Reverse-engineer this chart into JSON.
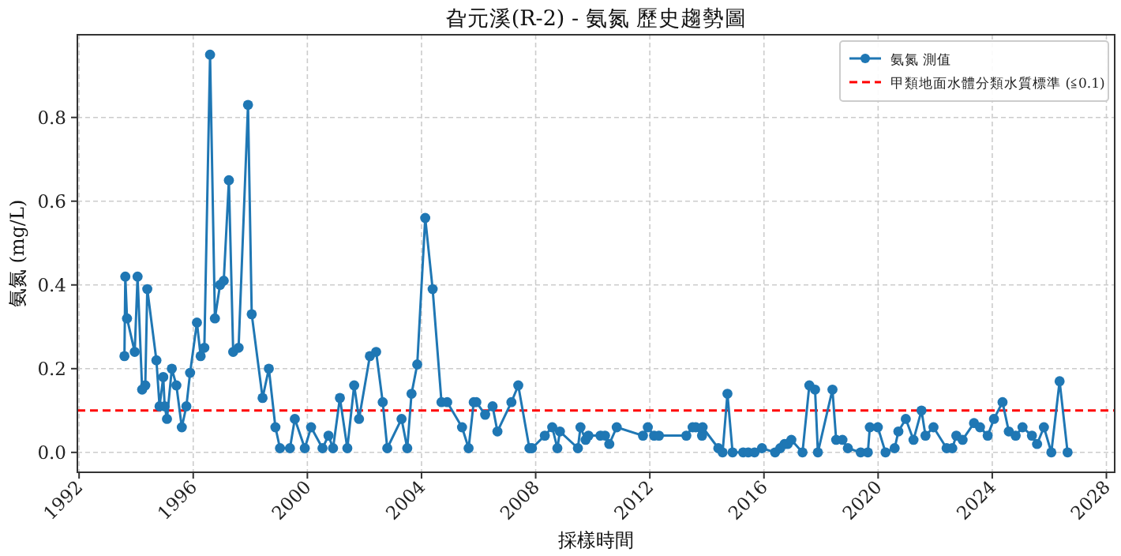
{
  "chart_data": {
    "type": "line",
    "title": "旮元溪(R-2) - 氨氮 歷史趨勢圖",
    "xlabel": "採樣時間",
    "ylabel": "氨氮 (mg/L)",
    "x": [
      1993.59,
      1993.62,
      1993.68,
      1993.95,
      1994.05,
      1994.21,
      1994.32,
      1994.39,
      1994.71,
      1994.82,
      1994.95,
      1995.0,
      1995.08,
      1995.25,
      1995.41,
      1995.6,
      1995.76,
      1995.89,
      1996.13,
      1996.26,
      1996.39,
      1996.59,
      1996.76,
      1996.94,
      1997.07,
      1997.25,
      1997.4,
      1997.59,
      1997.92,
      1998.05,
      1998.43,
      1998.65,
      1998.88,
      1999.04,
      1999.39,
      1999.56,
      1999.91,
      2000.13,
      2000.53,
      2000.74,
      2000.9,
      2001.14,
      2001.4,
      2001.64,
      2001.81,
      2002.19,
      2002.41,
      2002.64,
      2002.8,
      2003.3,
      2003.5,
      2003.65,
      2003.85,
      2004.13,
      2004.39,
      2004.7,
      2004.9,
      2005.42,
      2005.65,
      2005.83,
      2005.92,
      2006.23,
      2006.49,
      2006.66,
      2007.15,
      2007.39,
      2007.78,
      2007.87,
      2008.32,
      2008.58,
      2008.76,
      2008.85,
      2009.48,
      2009.57,
      2009.75,
      2009.85,
      2010.27,
      2010.43,
      2010.58,
      2010.84,
      2011.76,
      2011.93,
      2012.15,
      2012.32,
      2013.28,
      2013.5,
      2013.61,
      2013.83,
      2013.85,
      2014.4,
      2014.55,
      2014.72,
      2014.9,
      2015.27,
      2015.45,
      2015.67,
      2015.93,
      2016.39,
      2016.57,
      2016.72,
      2016.83,
      2016.96,
      2017.35,
      2017.59,
      2017.79,
      2017.89,
      2018.4,
      2018.53,
      2018.75,
      2018.94,
      2019.39,
      2019.64,
      2019.71,
      2019.99,
      2020.26,
      2020.58,
      2020.71,
      2020.97,
      2021.24,
      2021.52,
      2021.66,
      2021.94,
      2022.4,
      2022.6,
      2022.74,
      2022.96,
      2023.36,
      2023.57,
      2023.84,
      2024.06,
      2024.36,
      2024.58,
      2024.82,
      2025.06,
      2025.39,
      2025.57,
      2025.81,
      2026.07,
      2026.36,
      2026.64
    ],
    "series": [
      {
        "name": "氨氮 測值",
        "color": "#1f77b4",
        "values": [
          0.23,
          0.42,
          0.32,
          0.24,
          0.42,
          0.15,
          0.16,
          0.39,
          0.22,
          0.11,
          0.18,
          0.11,
          0.08,
          0.2,
          0.16,
          0.06,
          0.11,
          0.19,
          0.31,
          0.23,
          0.25,
          0.95,
          0.32,
          0.4,
          0.41,
          0.65,
          0.24,
          0.25,
          0.83,
          0.33,
          0.13,
          0.2,
          0.06,
          0.01,
          0.01,
          0.08,
          0.01,
          0.06,
          0.01,
          0.04,
          0.01,
          0.13,
          0.01,
          0.16,
          0.08,
          0.23,
          0.24,
          0.12,
          0.01,
          0.08,
          0.01,
          0.14,
          0.21,
          0.56,
          0.39,
          0.12,
          0.12,
          0.06,
          0.01,
          0.12,
          0.12,
          0.09,
          0.11,
          0.05,
          0.12,
          0.16,
          0.01,
          0.01,
          0.04,
          0.06,
          0.01,
          0.05,
          0.01,
          0.06,
          0.03,
          0.04,
          0.04,
          0.04,
          0.02,
          0.06,
          0.04,
          0.06,
          0.04,
          0.04,
          0.04,
          0.06,
          0.06,
          0.04,
          0.06,
          0.01,
          0.0,
          0.14,
          0.0,
          0.0,
          0.0,
          0.0,
          0.01,
          0.0,
          0.01,
          0.02,
          0.02,
          0.03,
          0.0,
          0.16,
          0.15,
          0.0,
          0.15,
          0.03,
          0.03,
          0.01,
          0.0,
          0.0,
          0.06,
          0.06,
          0.0,
          0.01,
          0.05,
          0.08,
          0.03,
          0.1,
          0.04,
          0.06,
          0.01,
          0.01,
          0.04,
          0.03,
          0.07,
          0.06,
          0.04,
          0.08,
          0.12,
          0.05,
          0.04,
          0.06,
          0.04,
          0.02,
          0.06,
          0.0,
          0.17,
          0.0
        ]
      }
    ],
    "marker": "circle",
    "line_style": "solid",
    "xlim": [
      1991.94,
      2028.29
    ],
    "xticks": [
      1992,
      1996,
      2000,
      2004,
      2008,
      2012,
      2016,
      2020,
      2024,
      2028
    ],
    "ylim": [
      -0.0475,
      0.9975
    ],
    "yticks": [
      {
        "value": 0,
        "label": "0.0"
      },
      {
        "value": 0.2,
        "label": "0.2"
      },
      {
        "value": 0.4,
        "label": "0.4"
      },
      {
        "value": 0.6,
        "label": "0.6"
      },
      {
        "value": 0.8,
        "label": "0.8"
      }
    ],
    "ref_lines": [
      {
        "axis": "y",
        "value": 0.1,
        "label": "甲類地面水體分類水質標準 (≦0.1)",
        "color": "#ff0000",
        "line_style": "dashed"
      }
    ],
    "grid": true,
    "legend": "top right"
  }
}
